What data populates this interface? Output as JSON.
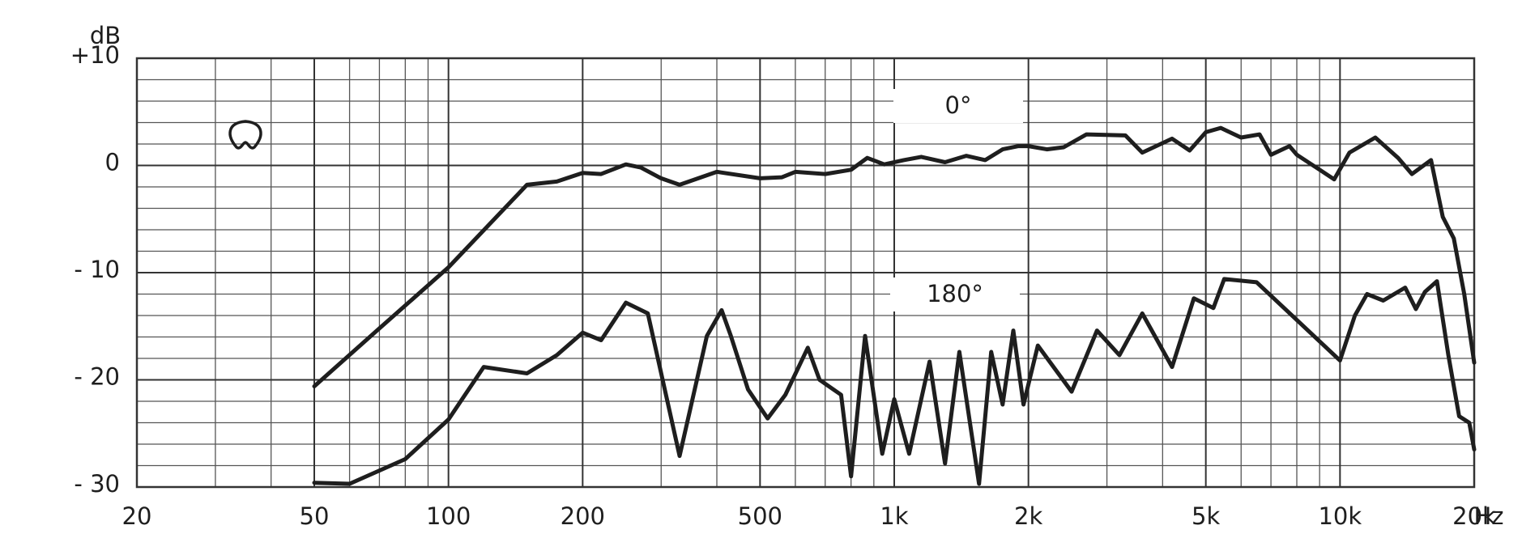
{
  "chart_data": {
    "type": "line",
    "x_label": "Hz",
    "y_label": "dB",
    "log_x": true,
    "xlim": [
      20,
      20000
    ],
    "ylim": [
      -30,
      10
    ],
    "xticks": [
      20,
      50,
      100,
      200,
      500,
      {
        "value": 1000,
        "label": "1k"
      },
      {
        "value": 2000,
        "label": "2k"
      },
      {
        "value": 5000,
        "label": "5k"
      },
      {
        "value": 10000,
        "label": "10k"
      },
      {
        "value": 20000,
        "label": "20k"
      }
    ],
    "yticks": [
      {
        "value": 10,
        "label": "+10"
      },
      0,
      {
        "value": -10,
        "label": "- 10"
      },
      {
        "value": -20,
        "label": "- 20"
      },
      {
        "value": -30,
        "label": "- 30"
      }
    ],
    "xgrid": [
      30,
      40,
      60,
      70,
      80,
      90,
      300,
      400,
      600,
      700,
      800,
      900,
      3000,
      4000,
      6000,
      7000,
      8000,
      9000
    ],
    "ygrid": [
      -28,
      -26,
      -24,
      -22,
      -18,
      -16,
      -14,
      -12,
      -8,
      -6,
      -4,
      -2,
      2,
      4,
      6,
      8
    ],
    "grid": true,
    "series": [
      {
        "name": "0°",
        "color": "#1e1e1e",
        "x": [
          50,
          70,
          100,
          150,
          175,
          200,
          220,
          250,
          270,
          300,
          330,
          400,
          500,
          560,
          600,
          700,
          800,
          870,
          950,
          1050,
          1150,
          1300,
          1450,
          1600,
          1750,
          1900,
          2000,
          2200,
          2400,
          2700,
          3300,
          3600,
          4200,
          4600,
          5000,
          5400,
          6000,
          6600,
          7000,
          7700,
          8000,
          9000,
          9700,
          10500,
          12000,
          13500,
          14500,
          16000,
          17000,
          18000,
          19000,
          20000
        ],
        "values": [
          -20.6,
          -15.2,
          -9.5,
          -1.8,
          -1.5,
          -0.7,
          -0.8,
          0.1,
          -0.2,
          -1.2,
          -1.8,
          -0.6,
          -1.2,
          -1.1,
          -0.6,
          -0.8,
          -0.4,
          0.7,
          0.1,
          0.5,
          0.8,
          0.3,
          0.9,
          0.5,
          1.5,
          1.8,
          1.8,
          1.5,
          1.7,
          2.9,
          2.8,
          1.2,
          2.5,
          1.4,
          3.1,
          3.5,
          2.6,
          2.9,
          1.0,
          1.8,
          1.0,
          -0.4,
          -1.3,
          1.2,
          2.6,
          0.7,
          -0.8,
          0.5,
          -4.8,
          -6.8,
          -12.0,
          -18.4
        ]
      },
      {
        "name": "180°",
        "color": "#1e1e1e",
        "x": [
          50,
          60,
          80,
          100,
          120,
          150,
          175,
          200,
          220,
          250,
          280,
          330,
          380,
          410,
          430,
          470,
          520,
          570,
          640,
          680,
          760,
          800,
          860,
          940,
          1000,
          1080,
          1200,
          1300,
          1400,
          1550,
          1650,
          1750,
          1850,
          1950,
          2100,
          2500,
          2850,
          3200,
          3600,
          4200,
          4700,
          5200,
          5500,
          6500,
          10000,
          10800,
          11500,
          12500,
          14000,
          14800,
          15500,
          16500,
          17500,
          18500,
          19500,
          20000
        ],
        "values": [
          -29.6,
          -29.7,
          -27.4,
          -23.7,
          -18.8,
          -19.4,
          -17.7,
          -15.6,
          -16.3,
          -12.8,
          -13.8,
          -27.1,
          -15.9,
          -13.5,
          -15.9,
          -20.9,
          -23.6,
          -21.4,
          -17.0,
          -20.0,
          -21.4,
          -29.0,
          -15.9,
          -26.9,
          -21.8,
          -26.9,
          -18.3,
          -27.8,
          -17.4,
          -29.7,
          -17.4,
          -22.3,
          -15.4,
          -22.3,
          -16.8,
          -21.1,
          -15.4,
          -17.7,
          -13.8,
          -18.8,
          -12.4,
          -13.3,
          -10.6,
          -10.9,
          -18.2,
          -14.0,
          -12.0,
          -12.6,
          -11.4,
          -13.4,
          -11.8,
          -10.8,
          -17.7,
          -23.4,
          -24.0,
          -26.5
        ]
      }
    ]
  }
}
